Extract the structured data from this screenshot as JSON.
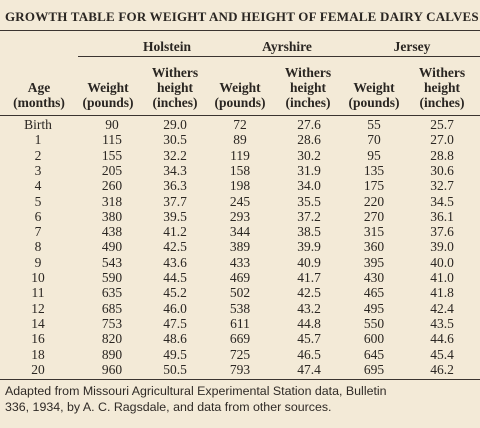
{
  "title": "GROWTH TABLE FOR WEIGHT AND HEIGHT OF FEMALE DAIRY CALVES",
  "groups": [
    "Holstein",
    "Ayrshire",
    "Jersey"
  ],
  "age_header": [
    "Age",
    "(months)"
  ],
  "weight_header": [
    "Weight",
    "(pounds)"
  ],
  "height_header": [
    "Withers",
    "height",
    "(inches)"
  ],
  "columns": [
    "age",
    "holstein_weight",
    "holstein_height",
    "ayrshire_weight",
    "ayrshire_height",
    "jersey_weight",
    "jersey_height"
  ],
  "rows": [
    [
      "Birth",
      "90",
      "29.0",
      "72",
      "27.6",
      "55",
      "25.7"
    ],
    [
      "1",
      "115",
      "30.5",
      "89",
      "28.6",
      "70",
      "27.0"
    ],
    [
      "2",
      "155",
      "32.2",
      "119",
      "30.2",
      "95",
      "28.8"
    ],
    [
      "3",
      "205",
      "34.3",
      "158",
      "31.9",
      "135",
      "30.6"
    ],
    [
      "4",
      "260",
      "36.3",
      "198",
      "34.0",
      "175",
      "32.7"
    ],
    [
      "5",
      "318",
      "37.7",
      "245",
      "35.5",
      "220",
      "34.5"
    ],
    [
      "6",
      "380",
      "39.5",
      "293",
      "37.2",
      "270",
      "36.1"
    ],
    [
      "7",
      "438",
      "41.2",
      "344",
      "38.5",
      "315",
      "37.6"
    ],
    [
      "8",
      "490",
      "42.5",
      "389",
      "39.9",
      "360",
      "39.0"
    ],
    [
      "9",
      "543",
      "43.6",
      "433",
      "40.9",
      "395",
      "40.0"
    ],
    [
      "10",
      "590",
      "44.5",
      "469",
      "41.7",
      "430",
      "41.0"
    ],
    [
      "11",
      "635",
      "45.2",
      "502",
      "42.5",
      "465",
      "41.8"
    ],
    [
      "12",
      "685",
      "46.0",
      "538",
      "43.2",
      "495",
      "42.4"
    ],
    [
      "14",
      "753",
      "47.5",
      "611",
      "44.8",
      "550",
      "43.5"
    ],
    [
      "16",
      "820",
      "48.6",
      "669",
      "45.7",
      "600",
      "44.6"
    ],
    [
      "18",
      "890",
      "49.5",
      "725",
      "46.5",
      "645",
      "45.4"
    ],
    [
      "20",
      "960",
      "50.5",
      "793",
      "47.4",
      "695",
      "46.2"
    ]
  ],
  "footnote": [
    "Adapted from Missouri Agricultural Experimental Station data, Bulletin",
    "336, 1934, by A. C. Ragsdale, and data from other sources."
  ]
}
